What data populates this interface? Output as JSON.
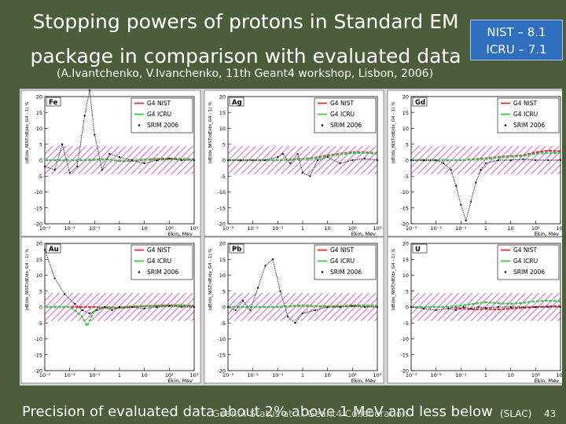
{
  "slide": {
    "title_line1": "Stopping powers of protons in Standard EM",
    "title_line2": "package in comparison with evaluated data",
    "subtitle": "(A.Ivantchenko, V.Ivanchenko, 11th Geant4 workshop, Lisbon, 2006)",
    "version_box": {
      "line1": "NIST – 8.1",
      "line2": "ICRU – 7.1"
    },
    "footer_text": "Precision of evaluated data about 2% above 1 MeV and less below",
    "footer_meta": "Geant4 Status at ... Geant4 Collaboration",
    "footer_org": "(SLAC)",
    "page_number": "43"
  },
  "colors": {
    "nist": "#e0303a",
    "icru": "#3cc84a",
    "srim": "#000000",
    "band": "#d050d0",
    "slide_bg": "#4b5d3a",
    "panel_bg": "#ffffff"
  },
  "chart_data": [
    {
      "type": "line",
      "panel": "Fe",
      "xlabel": "Ekin, Mev",
      "ylabel": "(dE/dx_NIST/dE/dx_G4 - 1) %",
      "x_log_range": [
        -3,
        3
      ],
      "ylim": [
        -20,
        20
      ],
      "y_ticks": [
        "20",
        "15",
        "10",
        "5",
        "0",
        "-5",
        "-10",
        "-15",
        "-20"
      ],
      "x_ticks": [
        "10⁻³",
        "10⁻²",
        "10⁻¹",
        "1",
        "10",
        "10²",
        "10³"
      ],
      "band": [
        -2,
        2
      ],
      "legend": [
        "G4 NIST",
        "G4 ICRU",
        "SRIM 2006"
      ],
      "series": [
        {
          "name": "G4 NIST",
          "logE": [
            -3,
            -2.5,
            -2,
            -1.5,
            -1,
            -0.5,
            0,
            0.5,
            1,
            1.5,
            2,
            2.5,
            3
          ],
          "values": [
            0,
            0,
            0,
            0,
            0.2,
            0.3,
            -0.3,
            -0.2,
            0.2,
            0.4,
            0.5,
            0.4,
            0.3
          ]
        },
        {
          "name": "G4 ICRU",
          "logE": [
            -3,
            -2.5,
            -2,
            -1.5,
            -1,
            -0.5,
            0,
            0.5,
            1,
            1.5,
            2,
            2.5,
            3
          ],
          "values": [
            0,
            0,
            0,
            0,
            0.1,
            0.2,
            -0.2,
            -0.1,
            0.1,
            0.2,
            0.3,
            0.3,
            0.2
          ]
        },
        {
          "name": "SRIM 2006",
          "logE": [
            -3,
            -2.6,
            -2.3,
            -2,
            -1.7,
            -1.4,
            -1.2,
            -1,
            -0.7,
            -0.4,
            0,
            0.5,
            1,
            1.5,
            2,
            2.5,
            3
          ],
          "values": [
            -2,
            -3,
            5,
            -4,
            -2,
            14,
            22,
            8,
            -3,
            2,
            1,
            0,
            -1,
            0,
            0.5,
            0,
            0
          ]
        }
      ]
    },
    {
      "type": "line",
      "panel": "Ag",
      "xlabel": "Ekin, Mev",
      "ylabel": "(dE/dx_NIST/dE/dx_G4 - 1) %",
      "x_log_range": [
        -3,
        3
      ],
      "ylim": [
        -20,
        20
      ],
      "y_ticks": [
        "20",
        "15",
        "10",
        "5",
        "0",
        "-5",
        "-10",
        "-15",
        "-20"
      ],
      "x_ticks": [
        "10⁻³",
        "10⁻²",
        "10⁻¹",
        "1",
        "10",
        "10²",
        "10³"
      ],
      "band": [
        -2,
        2
      ],
      "legend": [
        "G4 NIST",
        "G4 ICRU",
        "SRIM 2006"
      ],
      "series": [
        {
          "name": "G4 NIST",
          "logE": [
            -3,
            -2.5,
            -2,
            -1.5,
            -1,
            -0.5,
            0,
            0.5,
            1,
            1.5,
            2,
            2.5,
            3
          ],
          "values": [
            0,
            0,
            0,
            0,
            0,
            0.2,
            0.4,
            0.8,
            1.5,
            2,
            2.5,
            2.5,
            2.2
          ]
        },
        {
          "name": "G4 ICRU",
          "logE": [
            -3,
            -2.5,
            -2,
            -1.5,
            -1,
            -0.5,
            0,
            0.5,
            1,
            1.5,
            2,
            2.5,
            3
          ],
          "values": [
            0,
            0,
            0,
            0,
            0,
            0.1,
            0.3,
            0.6,
            1.2,
            1.8,
            2.2,
            2.3,
            2
          ]
        },
        {
          "name": "SRIM 2006",
          "logE": [
            -3,
            -2.5,
            -2,
            -1.5,
            -1,
            -0.8,
            -0.5,
            -0.2,
            0,
            0.3,
            0.6,
            1,
            1.5,
            2,
            2.5,
            3
          ],
          "values": [
            0,
            0,
            0,
            0,
            1,
            2,
            -1,
            2,
            -4,
            -5,
            0,
            1,
            -1,
            0,
            0.5,
            0
          ]
        }
      ]
    },
    {
      "type": "line",
      "panel": "Gd",
      "xlabel": "Ekin, Mev",
      "ylabel": "(dE/dx_NIST/dE/dx_G4 - 1) %",
      "x_log_range": [
        -3,
        3
      ],
      "ylim": [
        -20,
        20
      ],
      "y_ticks": [
        "20",
        "15",
        "10",
        "5",
        "0",
        "-5",
        "-10",
        "-15",
        "-20"
      ],
      "x_ticks": [
        "10⁻³",
        "10⁻²",
        "10⁻¹",
        "1",
        "10",
        "10²",
        "10³"
      ],
      "band": [
        -2,
        2
      ],
      "legend": [
        "G4 NIST",
        "G4 ICRU",
        "SRIM 2006"
      ],
      "series": [
        {
          "name": "G4 NIST",
          "logE": [
            -3,
            -2.5,
            -2,
            -1.5,
            -1,
            -0.5,
            0,
            0.5,
            1,
            1.5,
            2,
            2.5,
            3
          ],
          "values": [
            0,
            0,
            0,
            0,
            0,
            0.3,
            0.6,
            1,
            1.3,
            1.5,
            2.5,
            3,
            2.8
          ]
        },
        {
          "name": "G4 ICRU",
          "logE": [
            -3,
            -2.5,
            -2,
            -1.5,
            -1,
            -0.5,
            0,
            0.5,
            1,
            1.5,
            2,
            2.5,
            3
          ],
          "values": [
            0,
            0,
            0,
            0,
            0,
            0.2,
            0.4,
            0.8,
            1.1,
            1.3,
            2,
            2.3,
            2.2
          ]
        },
        {
          "name": "SRIM 2006",
          "logE": [
            -3,
            -2.5,
            -2,
            -1.7,
            -1.4,
            -1.2,
            -1,
            -0.8,
            -0.6,
            -0.4,
            -0.2,
            0,
            0.5,
            1,
            1.5,
            2,
            2.5,
            3
          ],
          "values": [
            0,
            0,
            0,
            -1,
            -3,
            -8,
            -14,
            -19,
            -13,
            -7,
            -3,
            -1,
            0,
            0,
            0.3,
            0,
            0,
            0
          ]
        }
      ]
    },
    {
      "type": "line",
      "panel": "Au",
      "xlabel": "Ekin, Mev",
      "ylabel": "(dE/dx_NIST/dE/dx_G4 - 1) %",
      "x_log_range": [
        -3,
        3
      ],
      "ylim": [
        -20,
        20
      ],
      "y_ticks": [
        "20",
        "15",
        "10",
        "5",
        "0",
        "-5",
        "-10",
        "-15",
        "-20"
      ],
      "x_ticks": [
        "10⁻³",
        "10⁻²",
        "10⁻¹",
        "1",
        "10",
        "10²",
        "10³"
      ],
      "band": [
        -2,
        2
      ],
      "legend": [
        "G4 NIST",
        "G4 ICRU",
        "SRIM 2006"
      ],
      "series": [
        {
          "name": "G4 NIST",
          "logE": [
            -3,
            -2.5,
            -2,
            -1.5,
            -1,
            -0.5,
            0,
            0.5,
            1,
            1.5,
            2,
            2.5,
            3
          ],
          "values": [
            0,
            0,
            0,
            0,
            0,
            -0.2,
            -0.3,
            0,
            0.3,
            0.4,
            0.6,
            0.5,
            0.4
          ]
        },
        {
          "name": "G4 ICRU",
          "logE": [
            -3,
            -2.5,
            -2,
            -1.8,
            -1.5,
            -1.3,
            -1,
            -0.5,
            0,
            0.5,
            1,
            1.5,
            2,
            2.5,
            3
          ],
          "values": [
            0,
            0,
            0,
            -1,
            -3,
            -6,
            -1,
            0,
            -0.3,
            0.2,
            0.3,
            0.4,
            0.5,
            0.5,
            0.3
          ]
        },
        {
          "name": "SRIM 2006",
          "logE": [
            -3,
            -2.6,
            -2.2,
            -1.8,
            -1.5,
            -1.2,
            -0.9,
            -0.6,
            -0.3,
            0,
            0.5,
            1,
            1.5,
            2,
            2.5,
            3
          ],
          "values": [
            18,
            9,
            4,
            1,
            -1,
            -2,
            -1,
            0,
            -1,
            0,
            0,
            -0.5,
            0,
            0.3,
            0,
            0
          ]
        }
      ]
    },
    {
      "type": "line",
      "panel": "Pb",
      "xlabel": "Ekin, Mev",
      "ylabel": "(dE/dx_NIST/dE/dx_G4 - 1) %",
      "x_log_range": [
        -3,
        3
      ],
      "ylim": [
        -20,
        20
      ],
      "y_ticks": [
        "20",
        "15",
        "10",
        "5",
        "0",
        "-5",
        "-10",
        "-15",
        "-20"
      ],
      "x_ticks": [
        "10⁻³",
        "10⁻²",
        "10⁻¹",
        "1",
        "10",
        "10²",
        "10³"
      ],
      "band": [
        -2,
        2
      ],
      "legend": [
        "G4 NIST",
        "G4 ICRU",
        "SRIM 2006"
      ],
      "series": [
        {
          "name": "G4 NIST",
          "logE": [
            -3,
            -2.5,
            -2,
            -1.5,
            -1,
            -0.5,
            0,
            0.5,
            1,
            1.5,
            2,
            2.5,
            3
          ],
          "values": [
            0,
            0,
            0,
            0,
            0,
            0.3,
            0.5,
            0.3,
            0.2,
            0.3,
            0.5,
            0.5,
            0.4
          ]
        },
        {
          "name": "G4 ICRU",
          "logE": [
            -3,
            -2.5,
            -2,
            -1.5,
            -1,
            -0.5,
            0,
            0.5,
            1,
            1.5,
            2,
            2.5,
            3
          ],
          "values": [
            0,
            0,
            0,
            0,
            0,
            0.2,
            0.4,
            0.2,
            0.1,
            0.2,
            0.3,
            0.4,
            0.3
          ]
        },
        {
          "name": "SRIM 2006",
          "logE": [
            -3,
            -2.7,
            -2.4,
            -2.1,
            -1.8,
            -1.5,
            -1.2,
            -0.9,
            -0.6,
            -0.3,
            0,
            0.5,
            1,
            1.5,
            2,
            2.5,
            3
          ],
          "values": [
            0,
            -1,
            2,
            -1,
            6,
            13,
            15,
            5,
            -3,
            -5,
            -2,
            -1,
            0,
            0,
            0.3,
            0,
            0
          ]
        }
      ]
    },
    {
      "type": "line",
      "panel": "U",
      "xlabel": "Ekin, Mev",
      "ylabel": "(dE/dx_NIST/dE/dx_G4 - 1) %",
      "x_log_range": [
        -3,
        3
      ],
      "ylim": [
        -20,
        20
      ],
      "y_ticks": [
        "20",
        "15",
        "10",
        "5",
        "0",
        "-5",
        "-10",
        "-15",
        "-20"
      ],
      "x_ticks": [
        "10⁻³",
        "10⁻²",
        "10⁻¹",
        "1",
        "10",
        "10²",
        "10³"
      ],
      "band": [
        -2,
        2
      ],
      "legend": [
        "G4 NIST",
        "G4 ICRU",
        "SRIM 2006"
      ],
      "series": [
        {
          "name": "G4 NIST",
          "logE": [
            -3,
            -2.5,
            -2,
            -1.5,
            -1,
            -0.5,
            0,
            0.5,
            1,
            1.5,
            2,
            2.5,
            3
          ],
          "values": [
            0,
            0,
            0,
            0,
            -0.5,
            -0.8,
            -0.6,
            -0.8,
            -0.5,
            -0.3,
            0,
            0.2,
            0.3
          ]
        },
        {
          "name": "G4 ICRU",
          "logE": [
            -3,
            -2.5,
            -2,
            -1.5,
            -1,
            -0.5,
            0,
            0.5,
            1,
            1.5,
            2,
            2.5,
            3
          ],
          "values": [
            0,
            0,
            0,
            0,
            0.5,
            1,
            1.5,
            1.2,
            1,
            1.3,
            1.8,
            2,
            1.8
          ]
        },
        {
          "name": "SRIM 2006",
          "logE": [
            -3,
            -2.5,
            -2,
            -1.5,
            -1.2,
            -0.9,
            -0.6,
            -0.3,
            0,
            0.5,
            1,
            1.5,
            2,
            2.5,
            3
          ],
          "values": [
            0,
            -0.5,
            -1,
            -0.5,
            -1,
            0,
            -0.5,
            0,
            -0.3,
            0,
            0,
            0,
            0,
            0,
            0
          ]
        }
      ]
    }
  ]
}
